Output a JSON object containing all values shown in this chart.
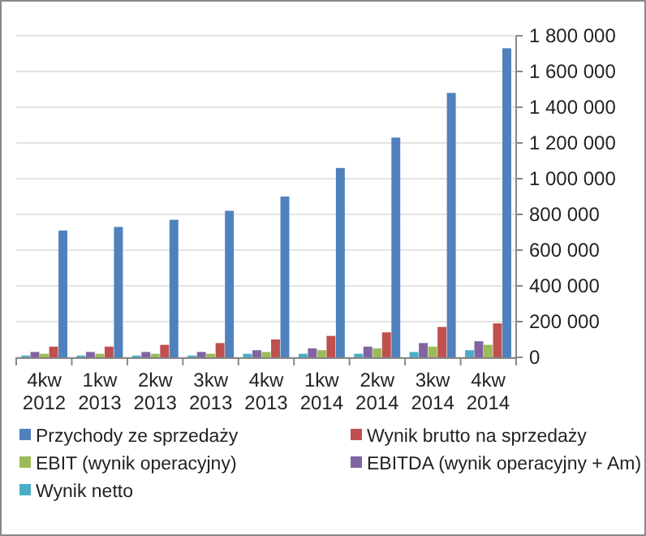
{
  "chart_data": {
    "type": "bar",
    "categories": [
      "4kw 2012",
      "1kw 2013",
      "2kw 2013",
      "3kw 2013",
      "4kw 2013",
      "1kw 2014",
      "2kw 2014",
      "3kw 2014",
      "4kw 2014"
    ],
    "series": [
      {
        "name": "Przychody ze sprzedaży",
        "color": "#4f81bd",
        "values": [
          710000,
          730000,
          770000,
          820000,
          900000,
          1060000,
          1230000,
          1480000,
          1730000
        ]
      },
      {
        "name": "Wynik brutto na sprzedaży",
        "color": "#c0504d",
        "values": [
          60000,
          60000,
          70000,
          80000,
          100000,
          120000,
          140000,
          170000,
          190000
        ]
      },
      {
        "name": "EBIT (wynik operacyjny)",
        "color": "#9bbb59",
        "values": [
          20000,
          20000,
          20000,
          20000,
          30000,
          40000,
          50000,
          60000,
          70000
        ]
      },
      {
        "name": "EBITDA (wynik operacyjny + Am)",
        "color": "#8064a2",
        "values": [
          30000,
          30000,
          30000,
          30000,
          40000,
          50000,
          60000,
          80000,
          90000
        ]
      },
      {
        "name": "Wynik netto",
        "color": "#4bacc6",
        "values": [
          10000,
          10000,
          10000,
          10000,
          20000,
          20000,
          20000,
          30000,
          40000
        ]
      }
    ],
    "ylim": [
      0,
      1800000
    ],
    "yticks": [
      {
        "value": 0,
        "label": "0"
      },
      {
        "value": 200000,
        "label": "200 000"
      },
      {
        "value": 400000,
        "label": "400 000"
      },
      {
        "value": 600000,
        "label": "600 000"
      },
      {
        "value": 800000,
        "label": "800 000"
      },
      {
        "value": 1000000,
        "label": "1 000 000"
      },
      {
        "value": 1200000,
        "label": "1 200 000"
      },
      {
        "value": 1400000,
        "label": "1 400 000"
      },
      {
        "value": 1600000,
        "label": "1 600 000"
      },
      {
        "value": 1800000,
        "label": "1 800 000"
      }
    ],
    "grid": "y",
    "legend": "bottom"
  }
}
